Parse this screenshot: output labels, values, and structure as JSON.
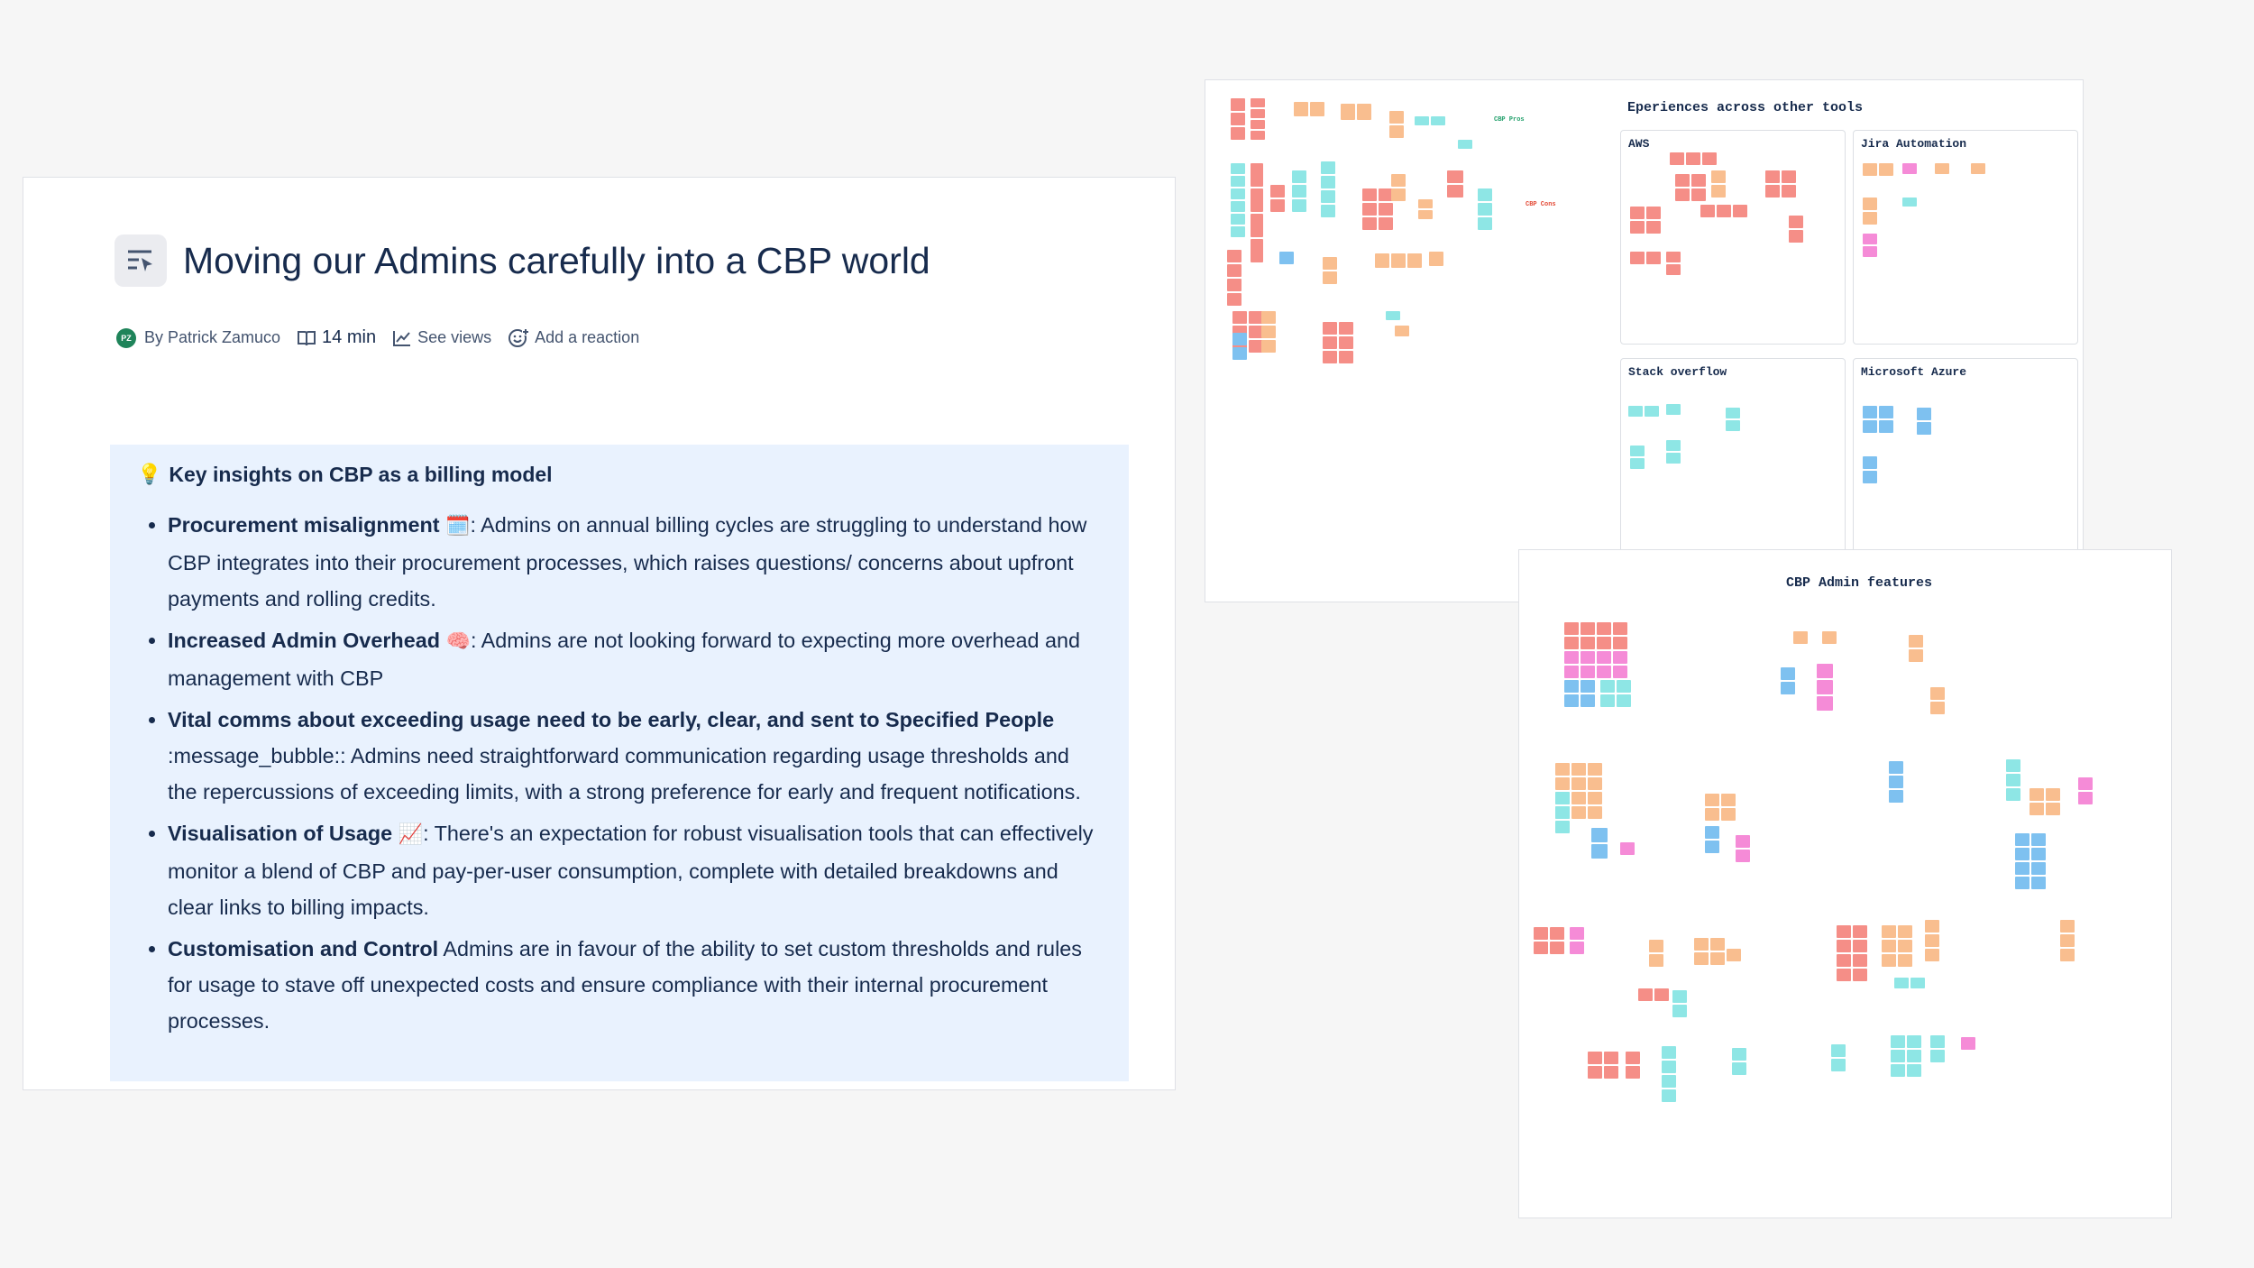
{
  "document": {
    "title": "Moving our Admins carefully into a CBP world",
    "byline": {
      "avatar_initials": "PZ",
      "author": "By Patrick Zamuco",
      "read_time": "14 min",
      "views_label": "See views",
      "reaction_label": "Add a reaction"
    },
    "panel": {
      "icon": "💡",
      "title": "Key insights on CBP as a billing model",
      "items": [
        {
          "bold": "Procurement misalignment",
          "emoji": "🗓️",
          "text": ": Admins on annual billing cycles are struggling to understand how CBP integrates into their procurement processes, which raises questions/ concerns about upfront payments and rolling credits."
        },
        {
          "bold": "Increased Admin Overhead",
          "emoji": "🧠",
          "text": ": Admins are not looking forward to expecting more overhead and management with CBP"
        },
        {
          "bold": "Vital comms about exceeding usage need to be early, clear, and sent to Specified People",
          "emoji": "",
          "text": " :message_bubble:: Admins need straightforward communication regarding usage thresholds and the repercussions of exceeding limits, with a strong preference for early and frequent notifications."
        },
        {
          "bold": "Visualisation of Usage",
          "emoji": "📈",
          "text": ": There's an expectation for robust visualisation tools that can effectively monitor a blend of CBP and pay-per-user consumption, complete with detailed breakdowns and clear links to billing impacts."
        },
        {
          "bold": "Customisation and Control",
          "emoji": "",
          "text": " Admins are in favour of the ability to set custom thresholds and rules for usage to stave off unexpected costs and ensure compliance with their internal procurement processes."
        }
      ]
    }
  },
  "board_top": {
    "section_title": "Eperiences across other tools",
    "pros_label": "CBP Pros",
    "cons_label": "CBP Cons",
    "frames": [
      "AWS",
      "Jira Automation",
      "Stack overflow",
      "Microsoft Azure"
    ]
  },
  "board_bottom": {
    "title": "CBP Admin features"
  },
  "colors": {
    "accent": "#0c66e4",
    "panel_bg": "#e9f2fe",
    "avatar_bg": "#1f845a"
  }
}
